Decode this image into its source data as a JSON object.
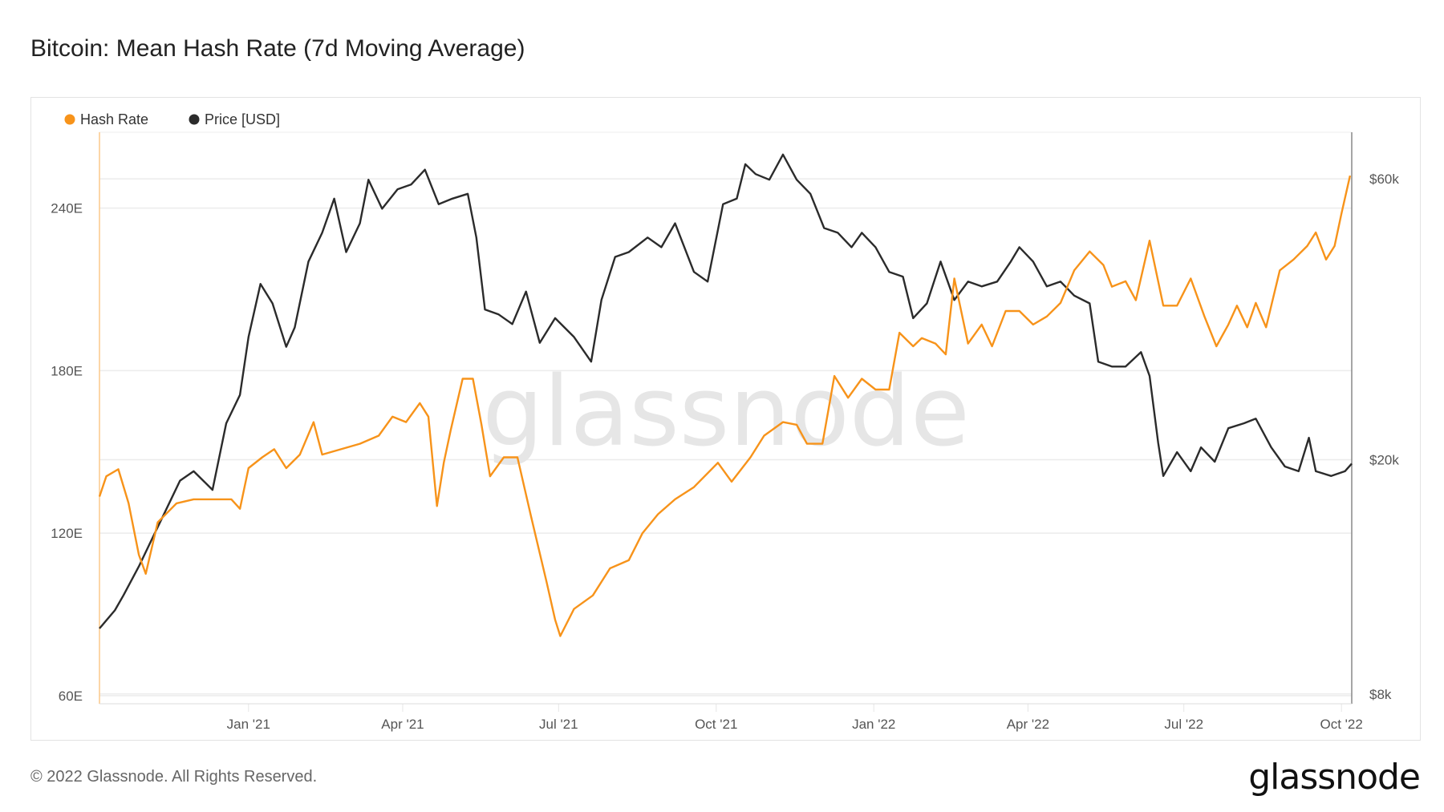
{
  "footer": "© 2022 Glassnode. All Rights Reserved.",
  "logo": "glassnode",
  "chart_data": {
    "type": "line",
    "title": "Bitcoin: Mean Hash Rate (7d Moving Average)",
    "watermark": "glassnode",
    "legend": {
      "placement": "top-left",
      "entries": [
        "Hash Rate",
        "Price [USD]"
      ]
    },
    "x_range": [
      "2020-10-06",
      "2022-10-07"
    ],
    "x_ticks": [
      {
        "date": "2021-01-01",
        "label": "Jan '21"
      },
      {
        "date": "2021-04-01",
        "label": "Apr '21"
      },
      {
        "date": "2021-07-01",
        "label": "Jul '21"
      },
      {
        "date": "2021-10-01",
        "label": "Oct '21"
      },
      {
        "date": "2022-01-01",
        "label": "Jan '22"
      },
      {
        "date": "2022-04-01",
        "label": "Apr '22"
      },
      {
        "date": "2022-07-01",
        "label": "Jul '22"
      },
      {
        "date": "2022-10-01",
        "label": "Oct '22"
      }
    ],
    "left_axis": {
      "label": "Hash Rate",
      "unit": "EH/s",
      "scale": "linear",
      "ylim": [
        57,
        268
      ],
      "ticks": [
        {
          "value": 60,
          "label": "60E"
        },
        {
          "value": 120,
          "label": "120E"
        },
        {
          "value": 180,
          "label": "180E"
        },
        {
          "value": 240,
          "label": "240E"
        }
      ]
    },
    "right_axis": {
      "label": "Price [USD]",
      "scale": "log",
      "ylim": [
        7700,
        72000
      ],
      "ticks": [
        {
          "value": 8000,
          "label": "$8k"
        },
        {
          "value": 20000,
          "label": "$20k"
        },
        {
          "value": 60000,
          "label": "$60k"
        }
      ]
    },
    "grid": true,
    "series": [
      {
        "name": "Hash Rate",
        "axis": "left",
        "color": "#f7931a",
        "points": [
          [
            "2020-10-06",
            133.5
          ],
          [
            "2020-10-10",
            141
          ],
          [
            "2020-10-17",
            143.6
          ],
          [
            "2020-10-23",
            131
          ],
          [
            "2020-10-29",
            112
          ],
          [
            "2020-11-02",
            105
          ],
          [
            "2020-11-09",
            124
          ],
          [
            "2020-11-20",
            131
          ],
          [
            "2020-11-30",
            132.5
          ],
          [
            "2020-12-11",
            132.5
          ],
          [
            "2020-12-22",
            132.5
          ],
          [
            "2020-12-27",
            129
          ],
          [
            "2021-01-01",
            144
          ],
          [
            "2021-01-09",
            148
          ],
          [
            "2021-01-16",
            151
          ],
          [
            "2021-01-23",
            144
          ],
          [
            "2021-01-31",
            149
          ],
          [
            "2021-02-08",
            161
          ],
          [
            "2021-02-13",
            149
          ],
          [
            "2021-02-24",
            151
          ],
          [
            "2021-03-07",
            153
          ],
          [
            "2021-03-18",
            156
          ],
          [
            "2021-03-26",
            163
          ],
          [
            "2021-04-03",
            161
          ],
          [
            "2021-04-11",
            168
          ],
          [
            "2021-04-16",
            163
          ],
          [
            "2021-04-21",
            130
          ],
          [
            "2021-04-25",
            146
          ],
          [
            "2021-04-29",
            158
          ],
          [
            "2021-05-06",
            177
          ],
          [
            "2021-05-12",
            177
          ],
          [
            "2021-05-17",
            160
          ],
          [
            "2021-05-22",
            141
          ],
          [
            "2021-05-30",
            148
          ],
          [
            "2021-06-07",
            148
          ],
          [
            "2021-06-15",
            126
          ],
          [
            "2021-06-24",
            102
          ],
          [
            "2021-06-29",
            88
          ],
          [
            "2021-07-02",
            82
          ],
          [
            "2021-07-10",
            92
          ],
          [
            "2021-07-21",
            97
          ],
          [
            "2021-07-31",
            107
          ],
          [
            "2021-08-11",
            110
          ],
          [
            "2021-08-19",
            120
          ],
          [
            "2021-08-28",
            127
          ],
          [
            "2021-09-07",
            132.5
          ],
          [
            "2021-09-18",
            137
          ],
          [
            "2021-10-02",
            146
          ],
          [
            "2021-10-10",
            139
          ],
          [
            "2021-10-21",
            148
          ],
          [
            "2021-10-29",
            156
          ],
          [
            "2021-11-09",
            161
          ],
          [
            "2021-11-17",
            160
          ],
          [
            "2021-11-23",
            153
          ],
          [
            "2021-12-02",
            153
          ],
          [
            "2021-12-09",
            178
          ],
          [
            "2021-12-17",
            170
          ],
          [
            "2021-12-25",
            177
          ],
          [
            "2022-01-02",
            173
          ],
          [
            "2022-01-10",
            173
          ],
          [
            "2022-01-16",
            194
          ],
          [
            "2022-01-24",
            189
          ],
          [
            "2022-01-29",
            192
          ],
          [
            "2022-02-06",
            190
          ],
          [
            "2022-02-12",
            186
          ],
          [
            "2022-02-17",
            214
          ],
          [
            "2022-02-25",
            190
          ],
          [
            "2022-03-05",
            197
          ],
          [
            "2022-03-11",
            189
          ],
          [
            "2022-03-19",
            202
          ],
          [
            "2022-03-27",
            202
          ],
          [
            "2022-04-04",
            197
          ],
          [
            "2022-04-12",
            200
          ],
          [
            "2022-04-20",
            205
          ],
          [
            "2022-04-28",
            217
          ],
          [
            "2022-05-07",
            224
          ],
          [
            "2022-05-15",
            219
          ],
          [
            "2022-05-20",
            211
          ],
          [
            "2022-05-28",
            213
          ],
          [
            "2022-06-03",
            206
          ],
          [
            "2022-06-11",
            228
          ],
          [
            "2022-06-19",
            204
          ],
          [
            "2022-06-27",
            204
          ],
          [
            "2022-07-05",
            214
          ],
          [
            "2022-07-13",
            200
          ],
          [
            "2022-07-20",
            189
          ],
          [
            "2022-07-27",
            197
          ],
          [
            "2022-08-01",
            204
          ],
          [
            "2022-08-07",
            196
          ],
          [
            "2022-08-12",
            205
          ],
          [
            "2022-08-18",
            196
          ],
          [
            "2022-08-26",
            217
          ],
          [
            "2022-09-03",
            221
          ],
          [
            "2022-09-11",
            226
          ],
          [
            "2022-09-16",
            231
          ],
          [
            "2022-09-22",
            221
          ],
          [
            "2022-09-27",
            226
          ],
          [
            "2022-10-01",
            238
          ],
          [
            "2022-10-06",
            252
          ]
        ]
      },
      {
        "name": "Price [USD]",
        "axis": "right",
        "color": "#2b2b2b",
        "points": [
          [
            "2020-10-06",
            10340
          ],
          [
            "2020-10-15",
            11100
          ],
          [
            "2020-10-20",
            11770
          ],
          [
            "2020-10-29",
            13180
          ],
          [
            "2020-11-06",
            14740
          ],
          [
            "2020-11-14",
            16480
          ],
          [
            "2020-11-22",
            18430
          ],
          [
            "2020-11-30",
            19120
          ],
          [
            "2020-12-11",
            17780
          ],
          [
            "2020-12-19",
            23060
          ],
          [
            "2020-12-27",
            25770
          ],
          [
            "2021-01-01",
            32330
          ],
          [
            "2021-01-08",
            39790
          ],
          [
            "2021-01-15",
            36870
          ],
          [
            "2021-01-23",
            31100
          ],
          [
            "2021-01-28",
            33560
          ],
          [
            "2021-02-05",
            43420
          ],
          [
            "2021-02-13",
            48600
          ],
          [
            "2021-02-20",
            55540
          ],
          [
            "2021-02-27",
            45060
          ],
          [
            "2021-03-07",
            50430
          ],
          [
            "2021-03-12",
            59800
          ],
          [
            "2021-03-20",
            53390
          ],
          [
            "2021-03-29",
            57610
          ],
          [
            "2021-04-06",
            58700
          ],
          [
            "2021-04-14",
            62200
          ],
          [
            "2021-04-22",
            54350
          ],
          [
            "2021-04-30",
            55540
          ],
          [
            "2021-05-09",
            56600
          ],
          [
            "2021-05-14",
            47700
          ],
          [
            "2021-05-19",
            36000
          ],
          [
            "2021-05-27",
            35300
          ],
          [
            "2021-06-04",
            34000
          ],
          [
            "2021-06-12",
            38620
          ],
          [
            "2021-06-20",
            31600
          ],
          [
            "2021-06-29",
            34800
          ],
          [
            "2021-07-10",
            32330
          ],
          [
            "2021-07-20",
            29350
          ],
          [
            "2021-07-26",
            37350
          ],
          [
            "2021-08-03",
            44220
          ],
          [
            "2021-08-11",
            45060
          ],
          [
            "2021-08-22",
            47700
          ],
          [
            "2021-08-30",
            45930
          ],
          [
            "2021-09-07",
            50430
          ],
          [
            "2021-09-18",
            41700
          ],
          [
            "2021-09-26",
            40150
          ],
          [
            "2021-10-05",
            54350
          ],
          [
            "2021-10-13",
            55540
          ],
          [
            "2021-10-18",
            63550
          ],
          [
            "2021-10-24",
            61130
          ],
          [
            "2021-11-01",
            59800
          ],
          [
            "2021-11-09",
            65990
          ],
          [
            "2021-11-17",
            59800
          ],
          [
            "2021-11-25",
            56600
          ],
          [
            "2021-12-03",
            49500
          ],
          [
            "2021-12-11",
            48600
          ],
          [
            "2021-12-19",
            45930
          ],
          [
            "2021-12-25",
            48600
          ],
          [
            "2022-01-02",
            45930
          ],
          [
            "2022-01-10",
            41700
          ],
          [
            "2022-01-18",
            40930
          ],
          [
            "2022-01-24",
            34800
          ],
          [
            "2022-02-01",
            36870
          ],
          [
            "2022-02-09",
            43420
          ],
          [
            "2022-02-17",
            37350
          ],
          [
            "2022-02-25",
            40150
          ],
          [
            "2022-03-05",
            39400
          ],
          [
            "2022-03-14",
            40150
          ],
          [
            "2022-03-22",
            43420
          ],
          [
            "2022-03-27",
            45930
          ],
          [
            "2022-04-04",
            43420
          ],
          [
            "2022-04-12",
            39400
          ],
          [
            "2022-04-20",
            40150
          ],
          [
            "2022-04-28",
            38000
          ],
          [
            "2022-05-07",
            36870
          ],
          [
            "2022-05-12",
            29350
          ],
          [
            "2022-05-20",
            28800
          ],
          [
            "2022-05-28",
            28800
          ],
          [
            "2022-06-06",
            30470
          ],
          [
            "2022-06-11",
            27760
          ],
          [
            "2022-06-16",
            21380
          ],
          [
            "2022-06-19",
            18770
          ],
          [
            "2022-06-27",
            20600
          ],
          [
            "2022-07-05",
            19120
          ],
          [
            "2022-07-11",
            20990
          ],
          [
            "2022-07-19",
            19850
          ],
          [
            "2022-07-27",
            22630
          ],
          [
            "2022-08-05",
            23060
          ],
          [
            "2022-08-12",
            23490
          ],
          [
            "2022-08-21",
            20990
          ],
          [
            "2022-08-29",
            19480
          ],
          [
            "2022-09-06",
            19120
          ],
          [
            "2022-09-12",
            21800
          ],
          [
            "2022-09-16",
            19120
          ],
          [
            "2022-09-25",
            18770
          ],
          [
            "2022-10-03",
            19120
          ],
          [
            "2022-10-07",
            19700
          ]
        ]
      }
    ]
  },
  "colors": {
    "hash_rate": "#f7931a",
    "price": "#2b2b2b",
    "grid": "#ececec",
    "watermark": "#e6e6e6"
  }
}
